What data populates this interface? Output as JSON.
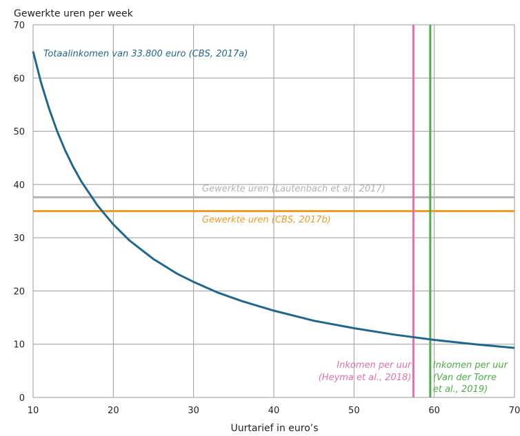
{
  "chart_data": {
    "type": "line",
    "title": "",
    "ylabel": "Gewerkte uren per week",
    "xlabel": "Uurtarief in euro’s",
    "xlim": [
      10,
      70
    ],
    "ylim": [
      0,
      70
    ],
    "xticks": [
      10,
      20,
      30,
      40,
      50,
      60,
      70
    ],
    "yticks": [
      0,
      10,
      20,
      30,
      40,
      50,
      60,
      70
    ],
    "grid": true,
    "colors": {
      "curve": "#1f6791",
      "lautenbach": "#b3b3b3",
      "cbs2017b": "#f39a22",
      "heyma": "#e46fae",
      "vandertorre": "#4bb043",
      "grid": "#9a9a9a"
    },
    "series": [
      {
        "name": "Totaalinkomen van 33.800 euro (CBS, 2017a)",
        "x": [
          10,
          11,
          12,
          13,
          14,
          15,
          16,
          18,
          20,
          22,
          25,
          28,
          30,
          33,
          36,
          40,
          45,
          50,
          55,
          60,
          65,
          70
        ],
        "y": [
          65,
          59.1,
          54.2,
          50.0,
          46.4,
          43.3,
          40.6,
          36.1,
          32.5,
          29.5,
          26.0,
          23.2,
          21.7,
          19.7,
          18.1,
          16.3,
          14.4,
          13.0,
          11.8,
          10.8,
          10.0,
          9.3
        ]
      }
    ],
    "hlines": [
      {
        "name": "Gewerkte uren (Lautenbach et al., 2017)",
        "y": 37.6
      },
      {
        "name": "Gewerkte uren (CBS, 2017b)",
        "y": 35
      }
    ],
    "vlines": [
      {
        "name_line1": "Inkomen per uur",
        "name_line2": "(Heyma et al., 2018)",
        "x": 57.4
      },
      {
        "name_line1": "Inkomen per uur",
        "name_line2": "(Van der Torre",
        "name_line3": "et al., 2019)",
        "x": 59.5
      }
    ]
  }
}
